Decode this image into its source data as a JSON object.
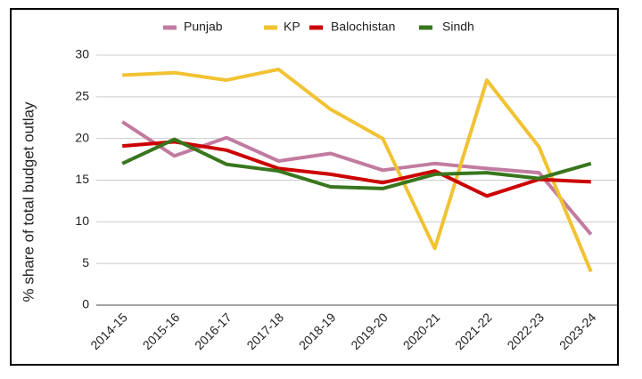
{
  "chart_data": {
    "type": "line",
    "y_label": "% share of total budget outlay",
    "categories": [
      "2014-15",
      "2015-16",
      "2016-17",
      "2017-18",
      "2018-19",
      "2019-20",
      "2020-21",
      "2021-22",
      "2022-23",
      "2023-24"
    ],
    "series": [
      {
        "name": "Punjab",
        "color": "#c27ba0",
        "values": [
          22.0,
          17.9,
          20.1,
          17.3,
          18.2,
          16.2,
          17.0,
          16.4,
          15.9,
          8.5
        ]
      },
      {
        "name": "KP",
        "color": "#f1c232",
        "values": [
          27.6,
          27.9,
          27.0,
          28.3,
          23.5,
          20.0,
          6.8,
          27.0,
          19.0,
          4.0
        ]
      },
      {
        "name": "Balochistan",
        "color": "#cc0000",
        "values": [
          19.1,
          19.6,
          18.6,
          16.4,
          15.7,
          14.7,
          16.1,
          13.1,
          15.1,
          14.8
        ]
      },
      {
        "name": "Sindh",
        "color": "#38761d",
        "values": [
          17.0,
          19.9,
          16.9,
          16.1,
          14.2,
          14.0,
          15.7,
          15.9,
          15.2,
          17.0
        ]
      }
    ],
    "ylim": [
      0,
      30
    ],
    "yticks": [
      0,
      5,
      10,
      15,
      20,
      25,
      30
    ],
    "grid": true
  }
}
